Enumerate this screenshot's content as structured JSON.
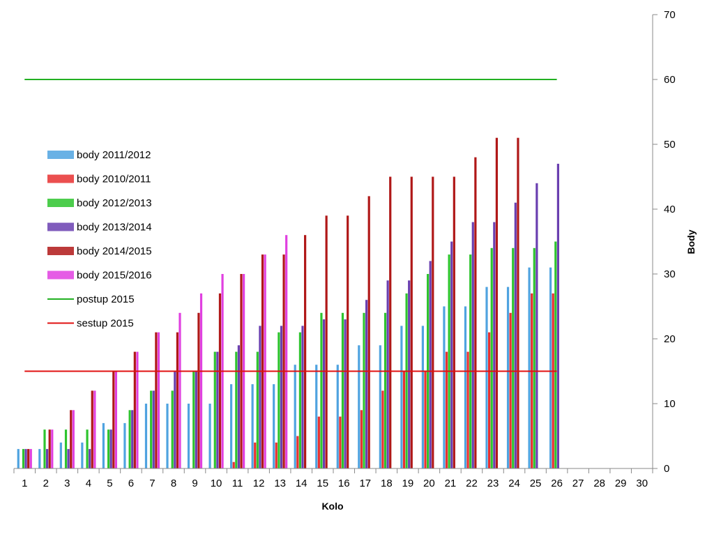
{
  "chart_data": {
    "type": "bar",
    "title": "",
    "xlabel": "Kolo",
    "ylabel": "Body",
    "ylim": [
      0,
      70
    ],
    "yticks": [
      0,
      10,
      20,
      30,
      40,
      50,
      60,
      70
    ],
    "y_axis_side": "right",
    "categories": [
      "1",
      "2",
      "3",
      "4",
      "5",
      "6",
      "7",
      "8",
      "9",
      "10",
      "11",
      "12",
      "13",
      "14",
      "15",
      "16",
      "17",
      "18",
      "19",
      "20",
      "21",
      "22",
      "23",
      "24",
      "25",
      "26",
      "27",
      "28",
      "29",
      "30"
    ],
    "grid": false,
    "legend_position": "left",
    "series": [
      {
        "name": "body 2011/2012",
        "color": "#4fa3e0",
        "kind": "bar",
        "values": [
          3,
          3,
          4,
          4,
          7,
          7,
          10,
          10,
          10,
          10,
          13,
          13,
          13,
          16,
          16,
          16,
          19,
          19,
          22,
          22,
          25,
          25,
          28,
          28,
          31,
          31,
          null,
          null,
          null,
          null
        ]
      },
      {
        "name": "body 2010/2011",
        "color": "#e83030",
        "kind": "bar",
        "values": [
          0,
          0,
          0,
          0,
          0,
          0,
          0,
          0,
          0,
          0,
          1,
          4,
          4,
          5,
          8,
          8,
          9,
          12,
          15,
          15,
          18,
          18,
          21,
          24,
          27,
          27,
          null,
          null,
          null,
          null
        ]
      },
      {
        "name": "body 2012/2013",
        "color": "#2ec42e",
        "kind": "bar",
        "values": [
          3,
          6,
          6,
          6,
          6,
          9,
          12,
          12,
          15,
          18,
          18,
          18,
          21,
          21,
          24,
          24,
          24,
          24,
          27,
          30,
          33,
          33,
          34,
          34,
          34,
          35,
          null,
          null,
          null,
          null
        ]
      },
      {
        "name": "body 2013/2014",
        "color": "#6a3fb0",
        "kind": "bar",
        "values": [
          3,
          3,
          3,
          3,
          6,
          9,
          12,
          15,
          15,
          18,
          19,
          22,
          22,
          22,
          23,
          23,
          26,
          29,
          29,
          32,
          35,
          38,
          38,
          41,
          44,
          47,
          null,
          null,
          null,
          null
        ]
      },
      {
        "name": "body 2014/2015",
        "color": "#b01818",
        "kind": "bar",
        "values": [
          3,
          6,
          9,
          12,
          15,
          18,
          21,
          21,
          24,
          27,
          30,
          33,
          33,
          36,
          39,
          39,
          42,
          45,
          45,
          45,
          45,
          48,
          51,
          51,
          null,
          null,
          null,
          null,
          null,
          null
        ]
      },
      {
        "name": "body 2015/2016",
        "color": "#e040e0",
        "kind": "bar",
        "values": [
          3,
          6,
          9,
          12,
          15,
          18,
          21,
          24,
          27,
          30,
          30,
          33,
          36,
          null,
          null,
          null,
          null,
          null,
          null,
          null,
          null,
          null,
          null,
          null,
          null,
          null,
          null,
          null,
          null,
          null
        ]
      },
      {
        "name": "postup 2015",
        "color": "#22b022",
        "kind": "line",
        "values": [
          60,
          60,
          60,
          60,
          60,
          60,
          60,
          60,
          60,
          60,
          60,
          60,
          60,
          60,
          60,
          60,
          60,
          60,
          60,
          60,
          60,
          60,
          60,
          60,
          60,
          60,
          null,
          null,
          null,
          null
        ]
      },
      {
        "name": "sestup 2015",
        "color": "#e01010",
        "kind": "line",
        "values": [
          15,
          15,
          15,
          15,
          15,
          15,
          15,
          15,
          15,
          15,
          15,
          15,
          15,
          15,
          15,
          15,
          15,
          15,
          15,
          15,
          15,
          15,
          15,
          15,
          15,
          15,
          null,
          null,
          null,
          null
        ]
      }
    ]
  }
}
